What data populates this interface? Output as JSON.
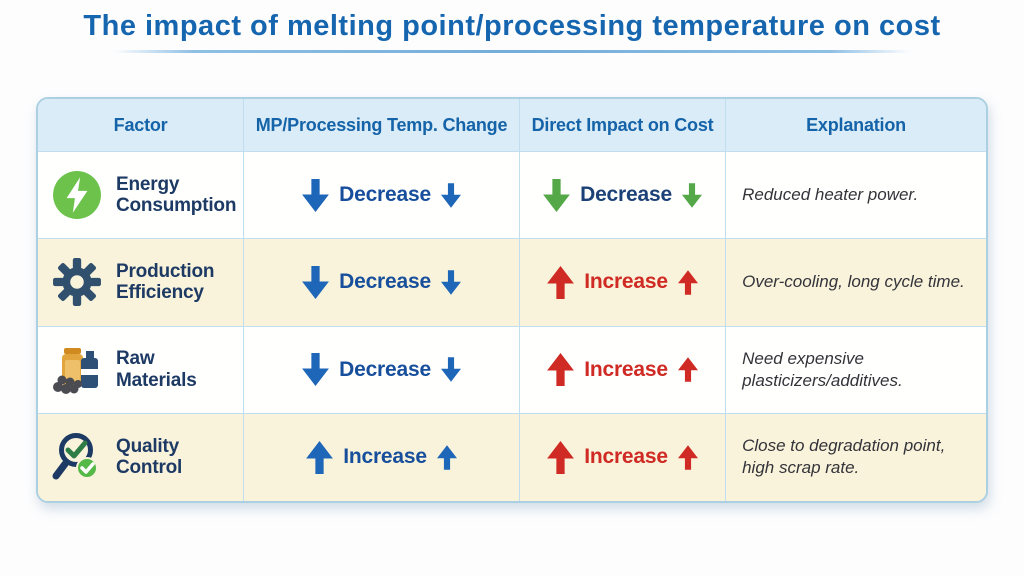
{
  "title": "The impact of melting point/processing temperature on cost",
  "accent_colors": {
    "title_blue": "#1565af",
    "header_bg": "#d9ecf7",
    "header_text": "#1563a8",
    "border_blue": "#abd0e2",
    "cream_row": "#faf3db",
    "blue_arrow": "#1e66b8",
    "green_arrow": "#55a848",
    "red_arrow": "#cf2a23",
    "factor_navy": "#1d3a64"
  },
  "table": {
    "headers": [
      "Factor",
      "MP/Processing Temp. Change",
      "Direct Impact on Cost",
      "Explanation"
    ],
    "rows": [
      {
        "factor": "Energy Consumption",
        "icon": "energy-icon",
        "temp_change": {
          "label": "Decrease",
          "direction": "down",
          "arrow_color": "#1e66b8",
          "text_color": "#174f9c"
        },
        "cost_impact": {
          "label": "Decrease",
          "direction": "down",
          "arrow_color": "#55a848",
          "text_color": "#1c4177"
        },
        "explanation": "Reduced heater power."
      },
      {
        "factor": "Production Efficiency",
        "icon": "gear-icon",
        "temp_change": {
          "label": "Decrease",
          "direction": "down",
          "arrow_color": "#1e66b8",
          "text_color": "#174f9c"
        },
        "cost_impact": {
          "label": "Increase",
          "direction": "up",
          "arrow_color": "#cf2a23",
          "text_color": "#cf2a23"
        },
        "explanation": "Over-cooling, long cycle time."
      },
      {
        "factor": "Raw Materials",
        "icon": "materials-icon",
        "temp_change": {
          "label": "Decrease",
          "direction": "down",
          "arrow_color": "#1e66b8",
          "text_color": "#174f9c"
        },
        "cost_impact": {
          "label": "Increase",
          "direction": "up",
          "arrow_color": "#cf2a23",
          "text_color": "#cf2a23"
        },
        "explanation": "Need expensive plasticizers/additives."
      },
      {
        "factor": "Quality Control",
        "icon": "quality-icon",
        "temp_change": {
          "label": "Increase",
          "direction": "up",
          "arrow_color": "#1e66b8",
          "text_color": "#174f9c"
        },
        "cost_impact": {
          "label": "Increase",
          "direction": "up",
          "arrow_color": "#cf2a23",
          "text_color": "#cf2a23"
        },
        "explanation": "Close to degradation point, high scrap rate."
      }
    ]
  },
  "chart_data": {
    "type": "table",
    "title": "The impact of melting point/processing temperature on cost",
    "columns": [
      "Factor",
      "MP/Processing Temp. Change",
      "Direct Impact on Cost",
      "Explanation"
    ],
    "rows": [
      [
        "Energy Consumption",
        "Decrease",
        "Decrease",
        "Reduced heater power."
      ],
      [
        "Production Efficiency",
        "Decrease",
        "Increase",
        "Over-cooling, long cycle time."
      ],
      [
        "Raw Materials",
        "Decrease",
        "Increase",
        "Need expensive plasticizers/additives."
      ],
      [
        "Quality Control",
        "Increase",
        "Increase",
        "Close to degradation point, high scrap rate."
      ]
    ]
  }
}
